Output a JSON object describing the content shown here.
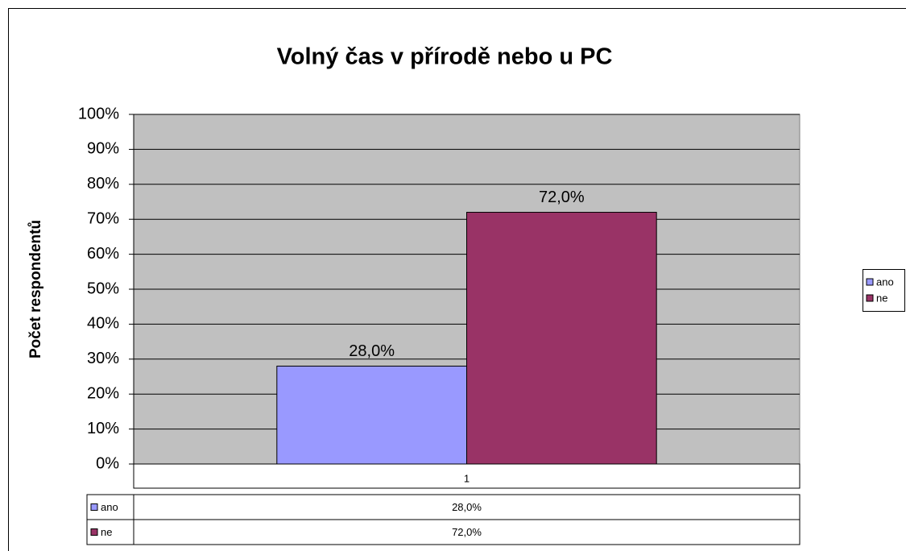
{
  "chart_data": {
    "type": "bar",
    "title": "Volný čas v přírodě nebo u PC",
    "y_label": "Počet respondentů",
    "categories": [
      "1"
    ],
    "series": [
      {
        "name": "ano",
        "color": "#9999ff",
        "values": [
          28
        ],
        "value_labels": [
          "28,0%"
        ]
      },
      {
        "name": "ne",
        "color": "#993366",
        "values": [
          72
        ],
        "value_labels": [
          "72,0%"
        ]
      }
    ],
    "ylim": [
      0,
      100
    ],
    "yticks": [
      {
        "value": 0,
        "label": "0%"
      },
      {
        "value": 10,
        "label": "10%"
      },
      {
        "value": 20,
        "label": "20%"
      },
      {
        "value": 30,
        "label": "30%"
      },
      {
        "value": 40,
        "label": "40%"
      },
      {
        "value": 50,
        "label": "50%"
      },
      {
        "value": 60,
        "label": "60%"
      },
      {
        "value": 70,
        "label": "70%"
      },
      {
        "value": 80,
        "label": "80%"
      },
      {
        "value": 90,
        "label": "90%"
      },
      {
        "value": 100,
        "label": "100%"
      }
    ],
    "grid": true,
    "legend": "right",
    "data_table": true
  }
}
